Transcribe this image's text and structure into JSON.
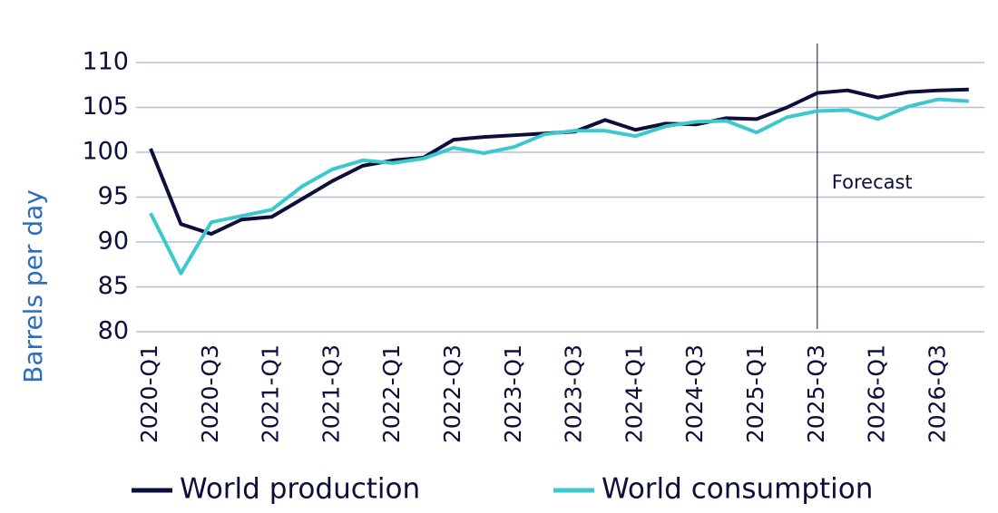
{
  "chart_data": {
    "type": "line",
    "y_label": "Barrels per day",
    "annotation": "Forecast",
    "forecast_start": "2025-Q3",
    "categories": [
      "2020-Q1",
      null,
      "2020-Q3",
      null,
      "2021-Q1",
      null,
      "2021-Q3",
      null,
      "2022-Q1",
      null,
      "2022-Q3",
      null,
      "2023-Q1",
      null,
      "2023-Q3",
      null,
      "2024-Q1",
      null,
      "2024-Q3",
      null,
      "2025-Q1",
      null,
      "2025-Q3",
      null,
      "2026-Q1",
      null,
      "2026-Q3",
      null
    ],
    "series": [
      {
        "name": "World production",
        "color": "#0d0f3a",
        "values": [
          100.4,
          92.0,
          90.9,
          92.5,
          92.8,
          94.8,
          96.8,
          98.5,
          99.1,
          99.4,
          101.4,
          101.7,
          101.9,
          102.1,
          102.3,
          103.6,
          102.5,
          103.2,
          103.1,
          103.8,
          103.7,
          105.0,
          106.6,
          106.9,
          106.1,
          106.7,
          106.9,
          107.0
        ]
      },
      {
        "name": "World consumption",
        "color": "#3cc8cc",
        "values": [
          93.2,
          86.5,
          92.2,
          92.9,
          93.6,
          96.2,
          98.1,
          99.1,
          98.8,
          99.3,
          100.5,
          99.9,
          100.6,
          102.0,
          102.4,
          102.4,
          101.8,
          102.9,
          103.4,
          103.5,
          102.2,
          103.9,
          104.6,
          104.7,
          103.7,
          105.1,
          105.9,
          105.7
        ]
      }
    ],
    "ylim": [
      80,
      110
    ],
    "yticks": [
      80,
      85,
      90,
      95,
      100,
      105,
      110
    ],
    "grid": true
  }
}
